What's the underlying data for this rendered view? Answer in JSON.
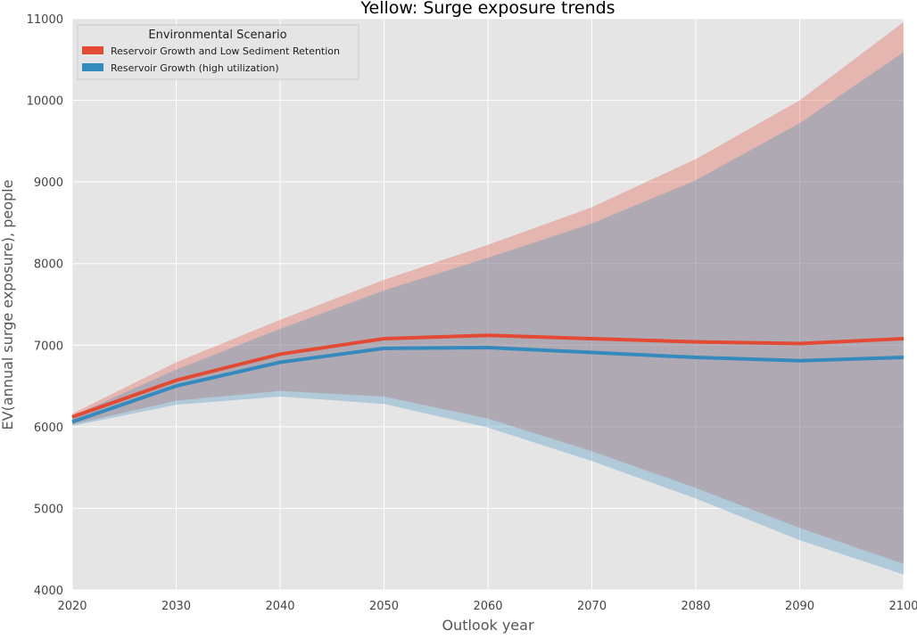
{
  "chart_data": {
    "type": "line",
    "title": "Yellow: Surge exposure trends",
    "xlabel": "Outlook year",
    "ylabel": "EV(annual surge exposure), people",
    "xlim": [
      2020,
      2100
    ],
    "ylim": [
      4000,
      11000
    ],
    "x": [
      2020,
      2030,
      2040,
      2050,
      2060,
      2070,
      2080,
      2090,
      2100
    ],
    "xticks": [
      "2020",
      "2030",
      "2040",
      "2050",
      "2060",
      "2070",
      "2080",
      "2090",
      "2100"
    ],
    "yticks": [
      "4000",
      "5000",
      "6000",
      "7000",
      "8000",
      "9000",
      "10000",
      "11000"
    ],
    "grid": true,
    "legend": {
      "title": "Environmental Scenario",
      "placement": "top-left"
    },
    "series": [
      {
        "name": "Reservoir Growth and Low Sediment Retention",
        "color": "#E24A33",
        "values": [
          6120,
          6570,
          6890,
          7080,
          7120,
          7080,
          7040,
          7020,
          7080
        ],
        "lower": [
          6030,
          6320,
          6440,
          6370,
          6100,
          5700,
          5250,
          4760,
          4320
        ],
        "upper": [
          6160,
          6790,
          7310,
          7800,
          8230,
          8690,
          9280,
          10000,
          10960
        ]
      },
      {
        "name": "Reservoir Growth (high utilization)",
        "color": "#348ABD",
        "values": [
          6060,
          6500,
          6790,
          6960,
          6970,
          6910,
          6850,
          6810,
          6850
        ],
        "lower": [
          6010,
          6270,
          6370,
          6280,
          5990,
          5580,
          5120,
          4610,
          4190
        ],
        "upper": [
          6130,
          6700,
          7200,
          7670,
          8070,
          8490,
          9020,
          9720,
          10590
        ]
      }
    ]
  }
}
